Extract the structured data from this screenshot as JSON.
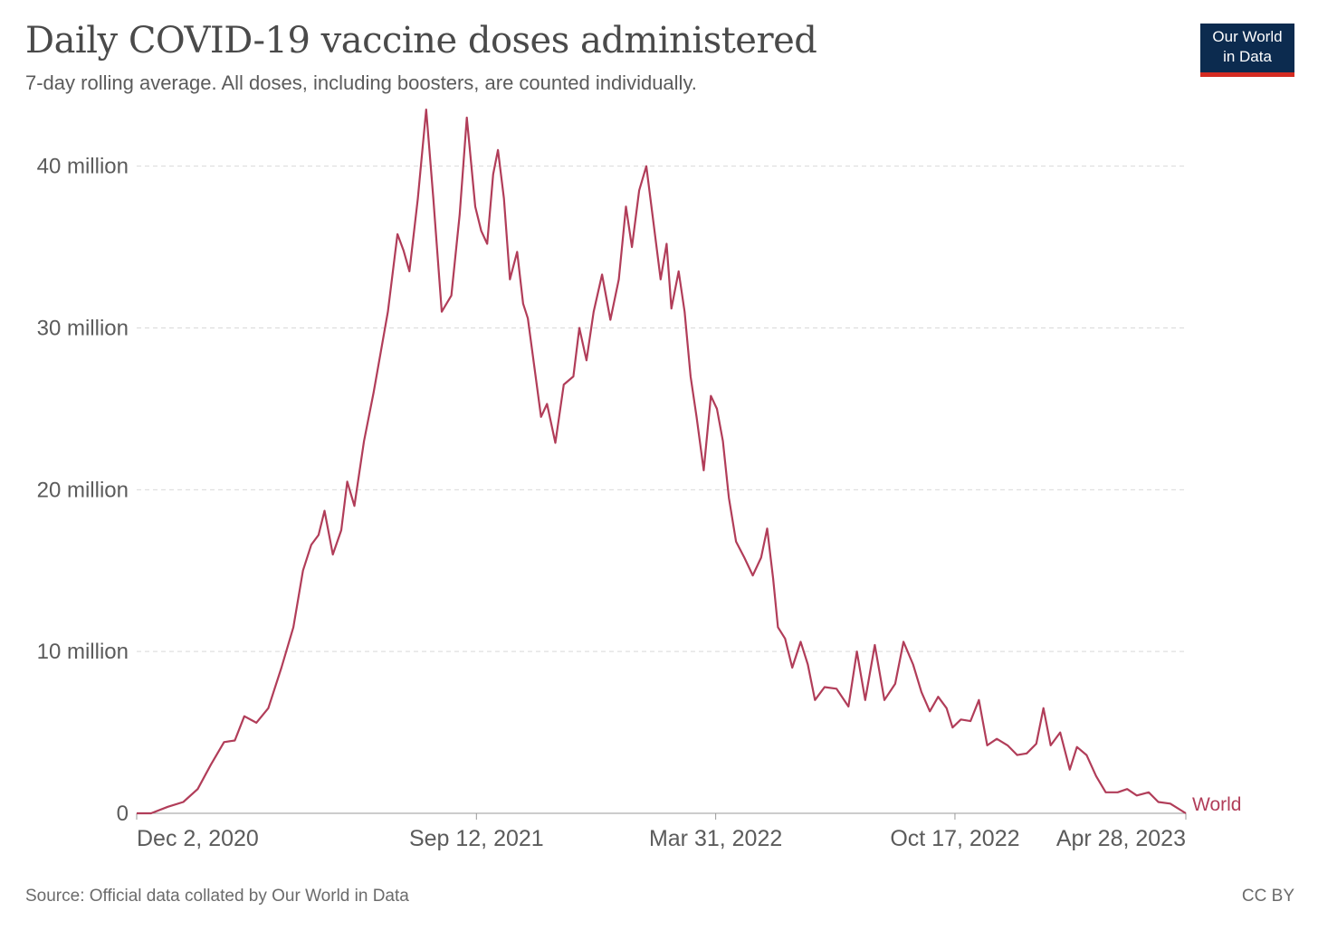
{
  "header": {
    "title": "Daily COVID-19 vaccine doses administered",
    "subtitle": "7-day rolling average. All doses, including boosters, are counted individually."
  },
  "logo": {
    "line1": "Our World",
    "line2": "in Data",
    "bg_color": "#0c2b4f",
    "accent_color": "#d42b21"
  },
  "footer": {
    "source": "Source: Official data collated by Our World in Data",
    "license": "CC BY"
  },
  "chart_data": {
    "type": "line",
    "title": "Daily COVID-19 vaccine doses administered",
    "subtitle": "7-day rolling average. All doses, including boosters, are counted individually.",
    "xlabel": "",
    "ylabel": "",
    "x_axis_type": "date",
    "xlim": [
      "2020-12-02",
      "2023-04-28"
    ],
    "ylim": [
      0,
      43000000
    ],
    "grid": "horizontal dashed",
    "legend": "inline label at end of line",
    "y_ticks": [
      {
        "value": 0,
        "label": "0"
      },
      {
        "value": 10000000,
        "label": "10 million"
      },
      {
        "value": 20000000,
        "label": "20 million"
      },
      {
        "value": 30000000,
        "label": "30 million"
      },
      {
        "value": 40000000,
        "label": "40 million"
      }
    ],
    "x_ticks": [
      {
        "date": "2020-12-02",
        "label": "Dec 2, 2020"
      },
      {
        "date": "2021-09-12",
        "label": "Sep 12, 2021"
      },
      {
        "date": "2022-03-31",
        "label": "Mar 31, 2022"
      },
      {
        "date": "2022-10-17",
        "label": "Oct 17, 2022"
      },
      {
        "date": "2023-04-28",
        "label": "Apr 28, 2023"
      }
    ],
    "series": [
      {
        "name": "World",
        "color": "#b13d59",
        "points": [
          [
            "2020-12-02",
            0
          ],
          [
            "2020-12-14",
            0
          ],
          [
            "2020-12-28",
            400000
          ],
          [
            "2021-01-10",
            700000
          ],
          [
            "2021-01-22",
            1500000
          ],
          [
            "2021-02-02",
            3000000
          ],
          [
            "2021-02-13",
            4400000
          ],
          [
            "2021-02-22",
            4500000
          ],
          [
            "2021-03-02",
            6000000
          ],
          [
            "2021-03-12",
            5600000
          ],
          [
            "2021-03-22",
            6500000
          ],
          [
            "2021-04-02",
            9000000
          ],
          [
            "2021-04-12",
            11500000
          ],
          [
            "2021-04-20",
            15000000
          ],
          [
            "2021-04-27",
            16600000
          ],
          [
            "2021-05-03",
            17200000
          ],
          [
            "2021-05-08",
            18700000
          ],
          [
            "2021-05-15",
            16000000
          ],
          [
            "2021-05-22",
            17500000
          ],
          [
            "2021-05-27",
            20500000
          ],
          [
            "2021-06-02",
            19000000
          ],
          [
            "2021-06-10",
            23000000
          ],
          [
            "2021-06-18",
            26000000
          ],
          [
            "2021-06-24",
            28500000
          ],
          [
            "2021-06-30",
            31000000
          ],
          [
            "2021-07-08",
            35800000
          ],
          [
            "2021-07-13",
            34800000
          ],
          [
            "2021-07-18",
            33500000
          ],
          [
            "2021-07-25",
            38000000
          ],
          [
            "2021-08-01",
            43500000
          ],
          [
            "2021-08-07",
            38000000
          ],
          [
            "2021-08-14",
            31000000
          ],
          [
            "2021-08-22",
            32000000
          ],
          [
            "2021-08-29",
            37000000
          ],
          [
            "2021-09-04",
            43000000
          ],
          [
            "2021-09-11",
            37500000
          ],
          [
            "2021-09-16",
            36000000
          ],
          [
            "2021-09-21",
            35200000
          ],
          [
            "2021-09-26",
            39500000
          ],
          [
            "2021-09-30",
            41000000
          ],
          [
            "2021-10-05",
            38000000
          ],
          [
            "2021-10-10",
            33000000
          ],
          [
            "2021-10-16",
            34700000
          ],
          [
            "2021-10-21",
            31500000
          ],
          [
            "2021-10-25",
            30600000
          ],
          [
            "2021-10-30",
            27800000
          ],
          [
            "2021-11-05",
            24500000
          ],
          [
            "2021-11-10",
            25300000
          ],
          [
            "2021-11-17",
            22900000
          ],
          [
            "2021-11-24",
            26500000
          ],
          [
            "2021-12-02",
            27000000
          ],
          [
            "2021-12-07",
            30000000
          ],
          [
            "2021-12-13",
            28000000
          ],
          [
            "2021-12-19",
            31000000
          ],
          [
            "2021-12-26",
            33300000
          ],
          [
            "2022-01-02",
            30500000
          ],
          [
            "2022-01-09",
            33000000
          ],
          [
            "2022-01-15",
            37500000
          ],
          [
            "2022-01-20",
            35000000
          ],
          [
            "2022-01-26",
            38500000
          ],
          [
            "2022-02-01",
            40000000
          ],
          [
            "2022-02-07",
            36500000
          ],
          [
            "2022-02-13",
            33000000
          ],
          [
            "2022-02-18",
            35200000
          ],
          [
            "2022-02-22",
            31200000
          ],
          [
            "2022-02-28",
            33500000
          ],
          [
            "2022-03-05",
            31000000
          ],
          [
            "2022-03-10",
            27000000
          ],
          [
            "2022-03-15",
            24500000
          ],
          [
            "2022-03-21",
            21200000
          ],
          [
            "2022-03-27",
            25800000
          ],
          [
            "2022-04-01",
            25000000
          ],
          [
            "2022-04-06",
            23000000
          ],
          [
            "2022-04-11",
            19500000
          ],
          [
            "2022-04-17",
            16800000
          ],
          [
            "2022-04-24",
            15800000
          ],
          [
            "2022-05-01",
            14700000
          ],
          [
            "2022-05-08",
            15800000
          ],
          [
            "2022-05-13",
            17600000
          ],
          [
            "2022-05-18",
            14500000
          ],
          [
            "2022-05-22",
            11500000
          ],
          [
            "2022-05-28",
            10800000
          ],
          [
            "2022-06-03",
            9000000
          ],
          [
            "2022-06-10",
            10600000
          ],
          [
            "2022-06-16",
            9200000
          ],
          [
            "2022-06-22",
            7000000
          ],
          [
            "2022-06-30",
            7800000
          ],
          [
            "2022-07-10",
            7700000
          ],
          [
            "2022-07-20",
            6600000
          ],
          [
            "2022-07-27",
            10000000
          ],
          [
            "2022-08-03",
            7000000
          ],
          [
            "2022-08-11",
            10400000
          ],
          [
            "2022-08-19",
            7000000
          ],
          [
            "2022-08-28",
            8000000
          ],
          [
            "2022-09-04",
            10600000
          ],
          [
            "2022-09-12",
            9200000
          ],
          [
            "2022-09-19",
            7500000
          ],
          [
            "2022-09-26",
            6300000
          ],
          [
            "2022-10-03",
            7200000
          ],
          [
            "2022-10-10",
            6500000
          ],
          [
            "2022-10-15",
            5300000
          ],
          [
            "2022-10-22",
            5800000
          ],
          [
            "2022-10-30",
            5700000
          ],
          [
            "2022-11-06",
            7000000
          ],
          [
            "2022-11-13",
            4200000
          ],
          [
            "2022-11-21",
            4600000
          ],
          [
            "2022-11-30",
            4200000
          ],
          [
            "2022-12-08",
            3600000
          ],
          [
            "2022-12-16",
            3700000
          ],
          [
            "2022-12-24",
            4300000
          ],
          [
            "2022-12-30",
            6500000
          ],
          [
            "2023-01-05",
            4200000
          ],
          [
            "2023-01-13",
            5000000
          ],
          [
            "2023-01-21",
            2700000
          ],
          [
            "2023-01-27",
            4100000
          ],
          [
            "2023-02-04",
            3600000
          ],
          [
            "2023-02-12",
            2300000
          ],
          [
            "2023-02-20",
            1300000
          ],
          [
            "2023-03-02",
            1300000
          ],
          [
            "2023-03-10",
            1500000
          ],
          [
            "2023-03-18",
            1100000
          ],
          [
            "2023-03-28",
            1300000
          ],
          [
            "2023-04-05",
            700000
          ],
          [
            "2023-04-15",
            600000
          ],
          [
            "2023-04-28",
            0
          ]
        ]
      }
    ]
  }
}
